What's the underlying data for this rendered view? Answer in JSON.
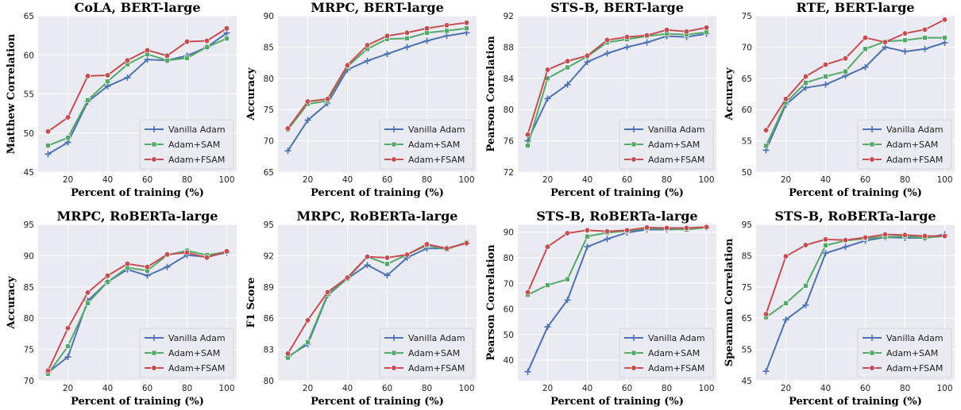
{
  "colors": {
    "Vanilla Adam": "#4c72b0",
    "Adam+SAM": "#55a868",
    "Adam+FSAM": "#c44e52",
    "plot_background": "#eaeaf2",
    "grid": "#ffffff"
  },
  "chart_data": [
    {
      "type": "line",
      "title": "CoLA, BERT-large",
      "xlabel": "Percent of training (%)",
      "ylabel": "Matthew Correlation",
      "x": [
        10,
        20,
        30,
        40,
        50,
        60,
        70,
        80,
        90,
        100
      ],
      "xticks": [
        20,
        40,
        60,
        80,
        100
      ],
      "xlim": [
        5,
        105
      ],
      "ylim": [
        45,
        65
      ],
      "yticks": [
        45,
        50,
        55,
        60,
        65
      ],
      "grid": true,
      "legend": "lower-right",
      "series": [
        {
          "name": "Vanilla Adam",
          "marker": "plus",
          "values": [
            47.3,
            48.8,
            54.0,
            56.0,
            57.1,
            59.4,
            59.3,
            59.9,
            61.0,
            62.8
          ]
        },
        {
          "name": "Adam+SAM",
          "marker": "square",
          "values": [
            48.4,
            49.4,
            54.2,
            56.6,
            58.8,
            60.1,
            59.3,
            59.6,
            61.0,
            62.1
          ]
        },
        {
          "name": "Adam+FSAM",
          "marker": "circle",
          "values": [
            50.2,
            52.0,
            57.3,
            57.4,
            59.3,
            60.6,
            59.9,
            61.7,
            61.8,
            63.4
          ]
        }
      ]
    },
    {
      "type": "line",
      "title": "MRPC, BERT-large",
      "xlabel": "Percent of training (%)",
      "ylabel": "Accuracy",
      "x": [
        10,
        20,
        30,
        40,
        50,
        60,
        70,
        80,
        90,
        100
      ],
      "xticks": [
        20,
        40,
        60,
        80,
        100
      ],
      "xlim": [
        5,
        105
      ],
      "ylim": [
        65,
        90
      ],
      "yticks": [
        65,
        70,
        75,
        80,
        85,
        90
      ],
      "grid": true,
      "legend": "lower-right",
      "series": [
        {
          "name": "Vanilla Adam",
          "marker": "plus",
          "values": [
            68.4,
            73.3,
            76.0,
            81.4,
            82.8,
            83.9,
            85.0,
            86.0,
            86.8,
            87.3
          ]
        },
        {
          "name": "Adam+SAM",
          "marker": "square",
          "values": [
            71.8,
            75.9,
            76.4,
            81.9,
            84.7,
            86.3,
            86.4,
            87.3,
            87.6,
            88.0
          ]
        },
        {
          "name": "Adam+FSAM",
          "marker": "circle",
          "values": [
            72.0,
            76.3,
            76.7,
            82.1,
            85.3,
            86.8,
            87.3,
            88.0,
            88.5,
            88.9
          ]
        }
      ]
    },
    {
      "type": "line",
      "title": "STS-B, BERT-large",
      "xlabel": "Percent of training (%)",
      "ylabel": "Pearson Correlation",
      "x": [
        10,
        20,
        30,
        40,
        50,
        60,
        70,
        80,
        90,
        100
      ],
      "xticks": [
        20,
        40,
        60,
        80,
        100
      ],
      "xlim": [
        5,
        105
      ],
      "ylim": [
        72,
        92
      ],
      "yticks": [
        72,
        76,
        80,
        84,
        88,
        92
      ],
      "grid": true,
      "legend": "lower-right",
      "series": [
        {
          "name": "Vanilla Adam",
          "marker": "plus",
          "values": [
            76.0,
            81.4,
            83.2,
            86.1,
            87.2,
            88.0,
            88.6,
            89.4,
            89.3,
            89.7
          ]
        },
        {
          "name": "Adam+SAM",
          "marker": "square",
          "values": [
            75.4,
            84.0,
            85.4,
            86.8,
            88.6,
            89.0,
            89.4,
            89.7,
            89.6,
            89.9
          ]
        },
        {
          "name": "Adam+FSAM",
          "marker": "circle",
          "values": [
            76.8,
            85.1,
            86.2,
            86.9,
            88.9,
            89.3,
            89.5,
            90.2,
            90.0,
            90.5
          ]
        }
      ]
    },
    {
      "type": "line",
      "title": "RTE, BERT-large",
      "xlabel": "Percent of training (%)",
      "ylabel": "Accuracy",
      "x": [
        10,
        20,
        30,
        40,
        50,
        60,
        70,
        80,
        90,
        100
      ],
      "xticks": [
        20,
        40,
        60,
        80,
        100
      ],
      "xlim": [
        5,
        105
      ],
      "ylim": [
        50,
        75
      ],
      "yticks": [
        50,
        55,
        60,
        65,
        70,
        75
      ],
      "grid": true,
      "legend": "lower-right",
      "series": [
        {
          "name": "Vanilla Adam",
          "marker": "plus",
          "values": [
            53.5,
            60.8,
            63.5,
            64.0,
            65.4,
            66.8,
            70.0,
            69.3,
            69.7,
            70.7
          ]
        },
        {
          "name": "Adam+SAM",
          "marker": "square",
          "values": [
            54.2,
            61.1,
            64.3,
            65.3,
            66.1,
            69.7,
            70.9,
            71.1,
            71.5,
            71.5
          ]
        },
        {
          "name": "Adam+FSAM",
          "marker": "circle",
          "values": [
            56.7,
            61.7,
            65.3,
            67.2,
            68.2,
            71.5,
            70.8,
            72.2,
            72.8,
            74.4
          ]
        }
      ]
    },
    {
      "type": "line",
      "title": "MRPC, RoBERTa-large",
      "xlabel": "Percent of training (%)",
      "ylabel": "Accuracy",
      "x": [
        10,
        20,
        30,
        40,
        50,
        60,
        70,
        80,
        90,
        100
      ],
      "xticks": [
        20,
        40,
        60,
        80,
        100
      ],
      "xlim": [
        5,
        105
      ],
      "ylim": [
        70,
        95
      ],
      "yticks": [
        70,
        75,
        80,
        85,
        90,
        95
      ],
      "grid": true,
      "legend": "lower-right",
      "series": [
        {
          "name": "Vanilla Adam",
          "marker": "plus",
          "values": [
            71.3,
            73.8,
            82.8,
            85.8,
            87.8,
            86.8,
            88.2,
            90.1,
            89.8,
            90.5
          ]
        },
        {
          "name": "Adam+SAM",
          "marker": "square",
          "values": [
            71.1,
            75.5,
            82.4,
            85.8,
            88.1,
            87.6,
            90.1,
            90.8,
            90.1,
            90.6
          ]
        },
        {
          "name": "Adam+FSAM",
          "marker": "circle",
          "values": [
            71.6,
            78.4,
            84.1,
            86.8,
            88.7,
            88.2,
            90.2,
            90.5,
            89.7,
            90.7
          ]
        }
      ]
    },
    {
      "type": "line",
      "title": "MRPC, RoBERTa-large",
      "xlabel": "Percent of training (%)",
      "ylabel": "F1 Score",
      "x": [
        10,
        20,
        30,
        40,
        50,
        60,
        70,
        80,
        90,
        100
      ],
      "xticks": [
        20,
        40,
        60,
        80,
        100
      ],
      "xlim": [
        5,
        105
      ],
      "ylim": [
        80,
        95
      ],
      "yticks": [
        80,
        83,
        86,
        89,
        92,
        95
      ],
      "grid": true,
      "legend": "lower-right",
      "series": [
        {
          "name": "Vanilla Adam",
          "marker": "plus",
          "values": [
            82.3,
            83.5,
            88.2,
            89.8,
            91.1,
            90.1,
            91.8,
            92.7,
            92.7,
            93.2
          ]
        },
        {
          "name": "Adam+SAM",
          "marker": "square",
          "values": [
            82.2,
            83.7,
            88.3,
            89.8,
            91.9,
            91.2,
            92.1,
            93.0,
            92.6,
            93.3
          ]
        },
        {
          "name": "Adam+FSAM",
          "marker": "circle",
          "values": [
            82.6,
            85.8,
            88.5,
            89.9,
            91.9,
            91.8,
            92.1,
            93.1,
            92.7,
            93.2
          ]
        }
      ]
    },
    {
      "type": "line",
      "title": "STS-B, RoBERTa-large",
      "xlabel": "Percent of training (%)",
      "ylabel": "Pearson Correlation",
      "x": [
        10,
        20,
        30,
        40,
        50,
        60,
        70,
        80,
        90,
        100
      ],
      "xticks": [
        20,
        40,
        60,
        80,
        100
      ],
      "xlim": [
        5,
        105
      ],
      "ylim": [
        32,
        93
      ],
      "yticks": [
        40,
        50,
        60,
        70,
        80,
        90
      ],
      "grid": true,
      "legend": "lower-right",
      "series": [
        {
          "name": "Vanilla Adam",
          "marker": "plus",
          "values": [
            35.5,
            53.0,
            63.5,
            84.3,
            87.3,
            89.8,
            91.0,
            91.0,
            91.2,
            91.8
          ]
        },
        {
          "name": "Adam+SAM",
          "marker": "square",
          "values": [
            65.5,
            69.3,
            71.6,
            88.3,
            89.8,
            90.5,
            91.5,
            91.3,
            91.0,
            91.8
          ]
        },
        {
          "name": "Adam+FSAM",
          "marker": "circle",
          "values": [
            66.5,
            84.3,
            89.6,
            90.7,
            90.3,
            90.7,
            91.8,
            91.6,
            91.6,
            92.0
          ]
        }
      ]
    },
    {
      "type": "line",
      "title": "STS-B, RoBERTa-large",
      "xlabel": "Percent of training (%)",
      "ylabel": "Spearman Correlation",
      "x": [
        10,
        20,
        30,
        40,
        50,
        60,
        70,
        80,
        90,
        100
      ],
      "xticks": [
        20,
        40,
        60,
        80,
        100
      ],
      "xlim": [
        5,
        105
      ],
      "ylim": [
        45,
        95
      ],
      "yticks": [
        45,
        55,
        65,
        75,
        85,
        95
      ],
      "grid": true,
      "legend": "lower-right",
      "series": [
        {
          "name": "Vanilla Adam",
          "marker": "plus",
          "values": [
            48.0,
            64.5,
            69.2,
            85.8,
            87.8,
            89.8,
            90.9,
            90.7,
            90.7,
            91.8
          ]
        },
        {
          "name": "Adam+SAM",
          "marker": "square",
          "values": [
            65.3,
            69.8,
            75.4,
            88.3,
            89.8,
            90.5,
            91.0,
            91.2,
            90.7,
            91.3
          ]
        },
        {
          "name": "Adam+FSAM",
          "marker": "circle",
          "values": [
            66.3,
            84.8,
            88.4,
            90.2,
            90.0,
            90.8,
            91.8,
            91.6,
            91.3,
            91.3
          ]
        }
      ]
    }
  ]
}
